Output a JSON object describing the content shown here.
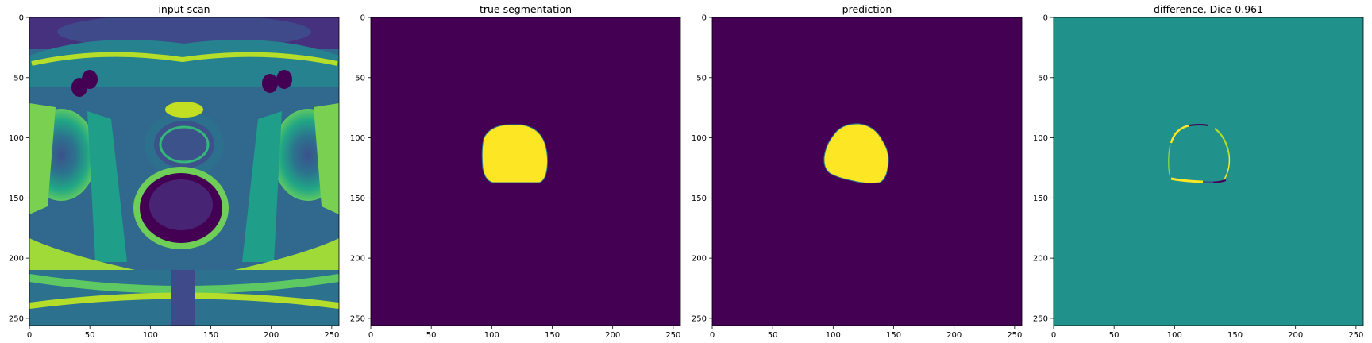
{
  "panels": [
    {
      "id": "input",
      "title": "input scan"
    },
    {
      "id": "truth",
      "title": "true segmentation"
    },
    {
      "id": "pred",
      "title": "prediction"
    },
    {
      "id": "diff",
      "title": "difference, Dice 0.961"
    }
  ],
  "axes": {
    "x_ticks": [
      0,
      50,
      100,
      150,
      200,
      250
    ],
    "y_ticks": [
      0,
      50,
      100,
      150,
      200,
      250
    ],
    "xlim": [
      0,
      256
    ],
    "ylim": [
      256,
      0
    ]
  },
  "colors": {
    "viridis_dark": "#440154",
    "viridis_mid": "#21918c",
    "viridis_yellow": "#fde725",
    "viridis_green": "#35b779",
    "viridis_blue": "#31688e"
  }
}
